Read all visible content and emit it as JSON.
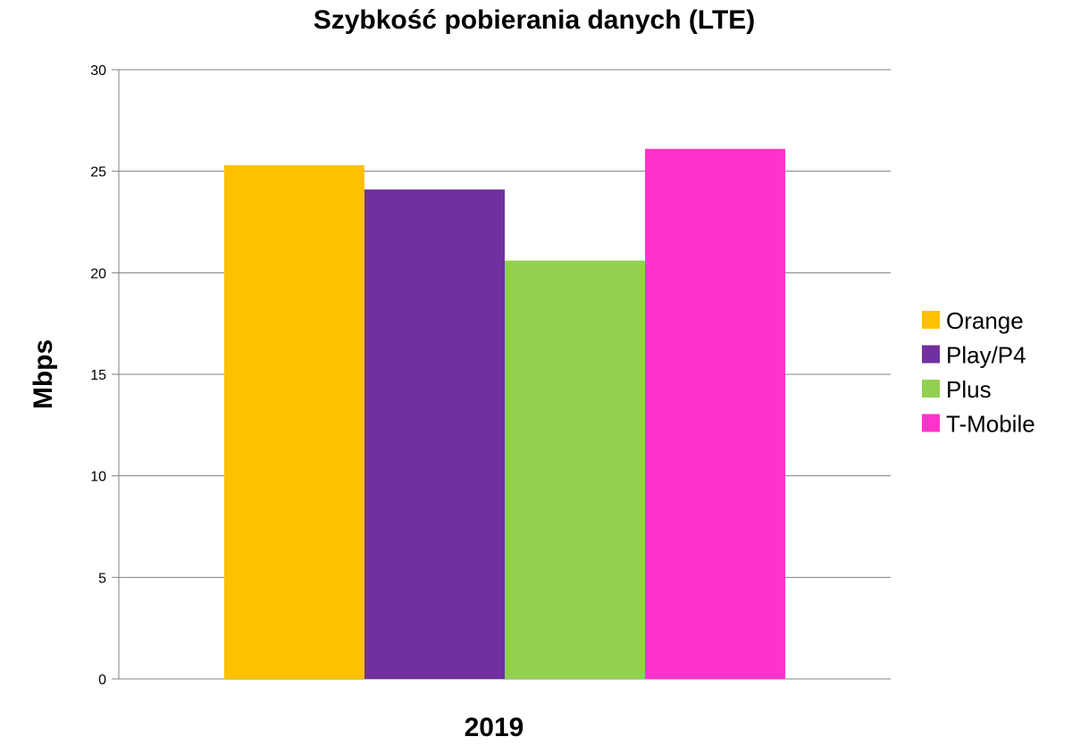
{
  "chart_data": {
    "type": "bar",
    "title": "Szybkość pobierania danych (LTE)",
    "xlabel": "2019",
    "ylabel": "Mbps",
    "ylim": [
      0,
      30
    ],
    "yticks": [
      0,
      5,
      10,
      15,
      20,
      25,
      30
    ],
    "grid": true,
    "legend_position": "right",
    "categories": [
      "2019"
    ],
    "series": [
      {
        "name": "Orange",
        "color": "#FFC000",
        "values": [
          25.3
        ]
      },
      {
        "name": "Play/P4",
        "color": "#7030A0",
        "values": [
          24.1
        ]
      },
      {
        "name": "Plus",
        "color": "#92D050",
        "values": [
          20.6
        ]
      },
      {
        "name": "T-Mobile",
        "color": "#FF33CC",
        "values": [
          26.1
        ]
      }
    ]
  }
}
